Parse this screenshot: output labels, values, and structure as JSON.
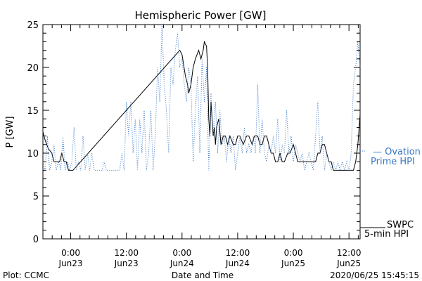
{
  "chart_data": {
    "type": "line",
    "title": "Hemispheric Power [GW]",
    "xlabel": "Date and Time",
    "ylabel": "P [GW]",
    "ylim": [
      0,
      25
    ],
    "xlim": [
      -0.25,
      2.6
    ],
    "y_ticks": [
      0,
      5,
      10,
      15,
      20,
      25
    ],
    "x_ticks": [
      {
        "x": 0.0,
        "time": "0:00",
        "date": "Jun23"
      },
      {
        "x": 0.5,
        "time": "12:00",
        "date": "Jun23"
      },
      {
        "x": 1.0,
        "time": "0:00",
        "date": "Jun24"
      },
      {
        "x": 1.5,
        "time": "12:00",
        "date": "Jun24"
      },
      {
        "x": 2.0,
        "time": "0:00",
        "date": "Jun25"
      },
      {
        "x": 2.5,
        "time": "12:00",
        "date": "Jun25"
      }
    ],
    "grid": false,
    "series": [
      {
        "name": "SWPC 5-min HPI",
        "style": "solid",
        "color": "#000000",
        "points": [
          [
            -0.25,
            12.5
          ],
          [
            -0.23,
            11.5
          ],
          [
            -0.2,
            10.5
          ],
          [
            -0.17,
            10
          ],
          [
            -0.15,
            9
          ],
          [
            -0.12,
            9
          ],
          [
            -0.1,
            9
          ],
          [
            -0.08,
            10
          ],
          [
            -0.06,
            9
          ],
          [
            -0.04,
            9
          ],
          [
            -0.02,
            8
          ],
          [
            0.0,
            8
          ],
          [
            0.02,
            8
          ],
          [
            0.98,
            22
          ],
          [
            1.0,
            21.5
          ],
          [
            1.03,
            19
          ],
          [
            1.05,
            18
          ],
          [
            1.06,
            17
          ],
          [
            1.08,
            18
          ],
          [
            1.1,
            20
          ],
          [
            1.12,
            21
          ],
          [
            1.15,
            22
          ],
          [
            1.17,
            21
          ],
          [
            1.19,
            22
          ],
          [
            1.2,
            23
          ],
          [
            1.22,
            22.5
          ],
          [
            1.23,
            20
          ],
          [
            1.24,
            14
          ],
          [
            1.25,
            12
          ],
          [
            1.26,
            16
          ],
          [
            1.27,
            14
          ],
          [
            1.28,
            12
          ],
          [
            1.29,
            13
          ],
          [
            1.3,
            11
          ],
          [
            1.31,
            13
          ],
          [
            1.33,
            14
          ],
          [
            1.35,
            11
          ],
          [
            1.37,
            12
          ],
          [
            1.39,
            12
          ],
          [
            1.41,
            11
          ],
          [
            1.43,
            12
          ],
          [
            1.46,
            11
          ],
          [
            1.48,
            11
          ],
          [
            1.5,
            12
          ],
          [
            1.52,
            12
          ],
          [
            1.55,
            11
          ],
          [
            1.58,
            12
          ],
          [
            1.6,
            12
          ],
          [
            1.63,
            11
          ],
          [
            1.65,
            12
          ],
          [
            1.68,
            12
          ],
          [
            1.7,
            11
          ],
          [
            1.72,
            11
          ],
          [
            1.74,
            12
          ],
          [
            1.76,
            12
          ],
          [
            1.78,
            11
          ],
          [
            1.8,
            10
          ],
          [
            1.82,
            10
          ],
          [
            1.84,
            9
          ],
          [
            1.86,
            9
          ],
          [
            1.88,
            10
          ],
          [
            1.9,
            9
          ],
          [
            1.92,
            9
          ],
          [
            1.95,
            10
          ],
          [
            1.97,
            10
          ],
          [
            2.0,
            11
          ],
          [
            2.02,
            10
          ],
          [
            2.04,
            9
          ],
          [
            2.06,
            9
          ],
          [
            2.08,
            9
          ],
          [
            2.1,
            9
          ],
          [
            2.12,
            9
          ],
          [
            2.14,
            9
          ],
          [
            2.16,
            9
          ],
          [
            2.18,
            9
          ],
          [
            2.2,
            9
          ],
          [
            2.22,
            10
          ],
          [
            2.24,
            10
          ],
          [
            2.26,
            11
          ],
          [
            2.28,
            11
          ],
          [
            2.3,
            10
          ],
          [
            2.32,
            9
          ],
          [
            2.34,
            9
          ],
          [
            2.36,
            8
          ],
          [
            2.38,
            8
          ],
          [
            2.4,
            8
          ],
          [
            2.42,
            8
          ],
          [
            2.44,
            8
          ],
          [
            2.46,
            8
          ],
          [
            2.48,
            8
          ],
          [
            2.5,
            8
          ],
          [
            2.52,
            8
          ],
          [
            2.54,
            8
          ],
          [
            2.56,
            9
          ],
          [
            2.58,
            11
          ],
          [
            2.6,
            14.5
          ]
        ]
      },
      {
        "name": "Ovation Prime HPI",
        "style": "dotted",
        "color": "#3a78c4",
        "points": [
          [
            -0.25,
            9
          ],
          [
            -0.23,
            8
          ],
          [
            -0.21,
            12
          ],
          [
            -0.19,
            8
          ],
          [
            -0.17,
            9
          ],
          [
            -0.15,
            11
          ],
          [
            -0.13,
            8
          ],
          [
            -0.11,
            9
          ],
          [
            -0.09,
            8
          ],
          [
            -0.07,
            12
          ],
          [
            -0.05,
            8
          ],
          [
            -0.03,
            9
          ],
          [
            -0.01,
            8
          ],
          [
            0.01,
            9
          ],
          [
            0.03,
            13
          ],
          [
            0.05,
            8
          ],
          [
            0.07,
            9
          ],
          [
            0.09,
            8
          ],
          [
            0.11,
            12
          ],
          [
            0.13,
            8
          ],
          [
            0.15,
            10
          ],
          [
            0.17,
            8
          ],
          [
            0.19,
            10
          ],
          [
            0.21,
            8
          ],
          [
            0.24,
            8
          ],
          [
            0.28,
            8
          ],
          [
            0.3,
            9
          ],
          [
            0.32,
            8
          ],
          [
            0.36,
            8
          ],
          [
            0.4,
            8
          ],
          [
            0.44,
            8
          ],
          [
            0.46,
            10
          ],
          [
            0.48,
            8
          ],
          [
            0.5,
            16
          ],
          [
            0.52,
            12
          ],
          [
            0.54,
            16
          ],
          [
            0.56,
            10
          ],
          [
            0.58,
            14
          ],
          [
            0.6,
            8
          ],
          [
            0.62,
            14
          ],
          [
            0.64,
            10
          ],
          [
            0.66,
            15
          ],
          [
            0.68,
            8
          ],
          [
            0.7,
            10
          ],
          [
            0.72,
            15
          ],
          [
            0.74,
            8
          ],
          [
            0.76,
            12
          ],
          [
            0.78,
            20
          ],
          [
            0.8,
            16
          ],
          [
            0.82,
            25
          ],
          [
            0.84,
            18
          ],
          [
            0.86,
            15
          ],
          [
            0.88,
            10
          ],
          [
            0.9,
            20
          ],
          [
            0.92,
            18
          ],
          [
            0.94,
            22
          ],
          [
            0.96,
            24
          ],
          [
            0.98,
            20
          ],
          [
            1.0,
            21
          ],
          [
            1.02,
            18
          ],
          [
            1.04,
            16
          ],
          [
            1.06,
            20
          ],
          [
            1.08,
            18
          ],
          [
            1.1,
            9
          ],
          [
            1.12,
            15
          ],
          [
            1.14,
            19
          ],
          [
            1.16,
            10
          ],
          [
            1.18,
            21
          ],
          [
            1.2,
            16
          ],
          [
            1.22,
            20
          ],
          [
            1.24,
            8
          ],
          [
            1.26,
            17
          ],
          [
            1.28,
            12
          ],
          [
            1.3,
            16
          ],
          [
            1.32,
            10
          ],
          [
            1.34,
            15
          ],
          [
            1.36,
            11
          ],
          [
            1.38,
            12
          ],
          [
            1.4,
            9
          ],
          [
            1.42,
            12
          ],
          [
            1.44,
            10
          ],
          [
            1.46,
            12
          ],
          [
            1.48,
            8
          ],
          [
            1.5,
            10
          ],
          [
            1.52,
            12
          ],
          [
            1.54,
            10
          ],
          [
            1.56,
            13
          ],
          [
            1.58,
            10
          ],
          [
            1.6,
            11
          ],
          [
            1.62,
            10
          ],
          [
            1.64,
            12
          ],
          [
            1.66,
            10
          ],
          [
            1.68,
            18
          ],
          [
            1.7,
            10
          ],
          [
            1.72,
            14
          ],
          [
            1.74,
            10
          ],
          [
            1.76,
            9
          ],
          [
            1.78,
            11
          ],
          [
            1.8,
            10
          ],
          [
            1.82,
            12
          ],
          [
            1.84,
            10
          ],
          [
            1.86,
            14
          ],
          [
            1.88,
            9
          ],
          [
            1.9,
            11
          ],
          [
            1.92,
            10
          ],
          [
            1.94,
            15
          ],
          [
            1.96,
            10
          ],
          [
            1.98,
            12
          ],
          [
            2.0,
            9
          ],
          [
            2.02,
            11
          ],
          [
            2.04,
            10
          ],
          [
            2.06,
            9
          ],
          [
            2.08,
            10
          ],
          [
            2.1,
            8
          ],
          [
            2.12,
            9
          ],
          [
            2.14,
            10
          ],
          [
            2.16,
            9
          ],
          [
            2.18,
            8
          ],
          [
            2.2,
            12
          ],
          [
            2.22,
            16
          ],
          [
            2.24,
            10
          ],
          [
            2.26,
            12
          ],
          [
            2.28,
            8
          ],
          [
            2.3,
            10
          ],
          [
            2.32,
            9
          ],
          [
            2.34,
            8
          ],
          [
            2.36,
            9
          ],
          [
            2.38,
            8
          ],
          [
            2.4,
            9
          ],
          [
            2.42,
            8
          ],
          [
            2.44,
            9
          ],
          [
            2.46,
            8
          ],
          [
            2.48,
            9
          ],
          [
            2.5,
            8
          ],
          [
            2.52,
            10
          ],
          [
            2.54,
            18
          ],
          [
            2.56,
            20
          ],
          [
            2.58,
            23
          ],
          [
            2.6,
            20
          ]
        ]
      }
    ]
  },
  "legend": {
    "ovation_line1": "— Ovation",
    "ovation_line2": "Prime HPI",
    "swpc_line1": "SWPC",
    "swpc_line2": "5-min HPI"
  },
  "footer": {
    "left": "Plot: CCMC",
    "center": "Date and Time",
    "right": "2020/06/25 15:45:15"
  }
}
